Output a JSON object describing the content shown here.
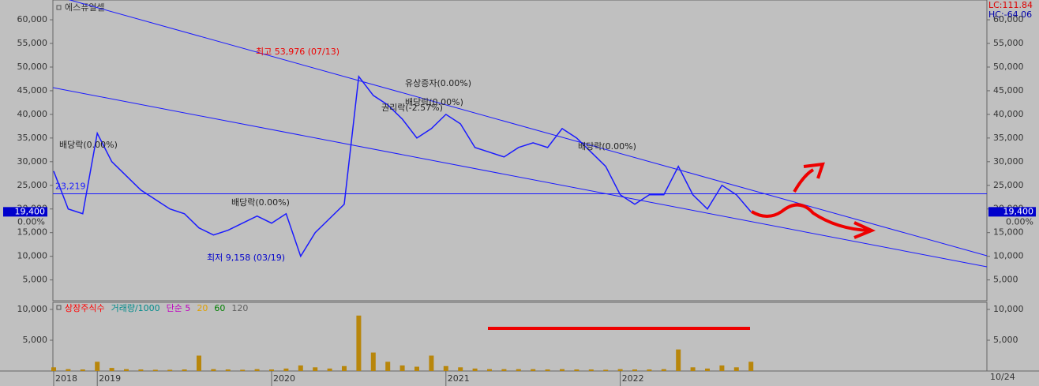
{
  "chart_data": [
    {
      "type": "line",
      "title": "에스퓨얼셀",
      "color": "#1a1aff",
      "values": [
        28000,
        20000,
        19000,
        36000,
        30000,
        27000,
        24000,
        22000,
        20000,
        19000,
        16000,
        14500,
        15500,
        17000,
        18500,
        17000,
        19000,
        10000,
        15000,
        18000,
        21000,
        48000,
        44000,
        42000,
        39000,
        35000,
        37000,
        40000,
        38000,
        33000,
        32000,
        31000,
        33000,
        34000,
        33000,
        37000,
        35000,
        32000,
        29000,
        23000,
        21000,
        23000,
        23000,
        29000,
        23000,
        20000,
        25000,
        23000,
        19400
      ],
      "ylim": [
        600,
        64180
      ],
      "yticks": [
        {
          "value": 5000,
          "label": "5,000"
        },
        {
          "value": 10000,
          "label": "10,000"
        },
        {
          "value": 15000,
          "label": "15,000"
        },
        {
          "value": 20000,
          "label": "20,000"
        },
        {
          "value": 25000,
          "label": "25,000"
        },
        {
          "value": 30000,
          "label": "30,000"
        },
        {
          "value": 35000,
          "label": "35,000"
        },
        {
          "value": 40000,
          "label": "40,000"
        },
        {
          "value": 45000,
          "label": "45,000"
        },
        {
          "value": 50000,
          "label": "50,000"
        },
        {
          "value": 55000,
          "label": "55,000"
        },
        {
          "value": 60000,
          "label": "60,000"
        }
      ],
      "hline": {
        "value": 23219,
        "label": "23,219"
      },
      "last": {
        "value": 19400,
        "label": "19,400"
      },
      "change_label": "0.00%",
      "indicators": [
        "LC:111.84",
        "HC:-64.06"
      ],
      "annotations": [
        "최고 53,976 (07/13)",
        "최저 9,158 (03/19)",
        "배당락(0.00%)",
        "배당락(0.00%)",
        "권리락(-2.57%)",
        "배당락(0.00%)",
        "유상증자(0.00%)",
        "배당락(0.00%)"
      ]
    },
    {
      "type": "bar",
      "color": "#b8860b",
      "categories": [
        "2018",
        null,
        null,
        "2019",
        null,
        null,
        null,
        null,
        null,
        null,
        null,
        null,
        null,
        null,
        null,
        "2020",
        null,
        null,
        null,
        null,
        null,
        null,
        null,
        null,
        null,
        null,
        null,
        "2021",
        null,
        null,
        null,
        null,
        null,
        null,
        null,
        null,
        null,
        null,
        null,
        "2022",
        null,
        null,
        null,
        null,
        null,
        null,
        null,
        null,
        null
      ],
      "values": [
        600,
        300,
        250,
        1500,
        500,
        300,
        250,
        200,
        200,
        250,
        2500,
        300,
        250,
        200,
        300,
        250,
        400,
        900,
        600,
        400,
        800,
        9000,
        3000,
        1500,
        900,
        700,
        2500,
        800,
        600,
        400,
        300,
        300,
        300,
        300,
        250,
        300,
        250,
        250,
        200,
        300,
        250,
        250,
        300,
        3500,
        600,
        400,
        900,
        600,
        1500
      ],
      "ylim": [
        0,
        11150
      ],
      "yticks": [
        {
          "value": 5000,
          "label": "5,000"
        },
        {
          "value": 10000,
          "label": "10,000"
        }
      ],
      "legend": [
        {
          "name": "상장주식수",
          "color": "#ff0000"
        },
        {
          "name": "거래량/1000",
          "color": "#008b8b"
        },
        {
          "name": "단순 5",
          "color": "#c000c0"
        },
        {
          "name": "20",
          "color": "#e0a000"
        },
        {
          "name": "60",
          "color": "#008000"
        },
        {
          "name": "120",
          "color": "#606060"
        }
      ],
      "x_end_label": "10/24"
    }
  ]
}
